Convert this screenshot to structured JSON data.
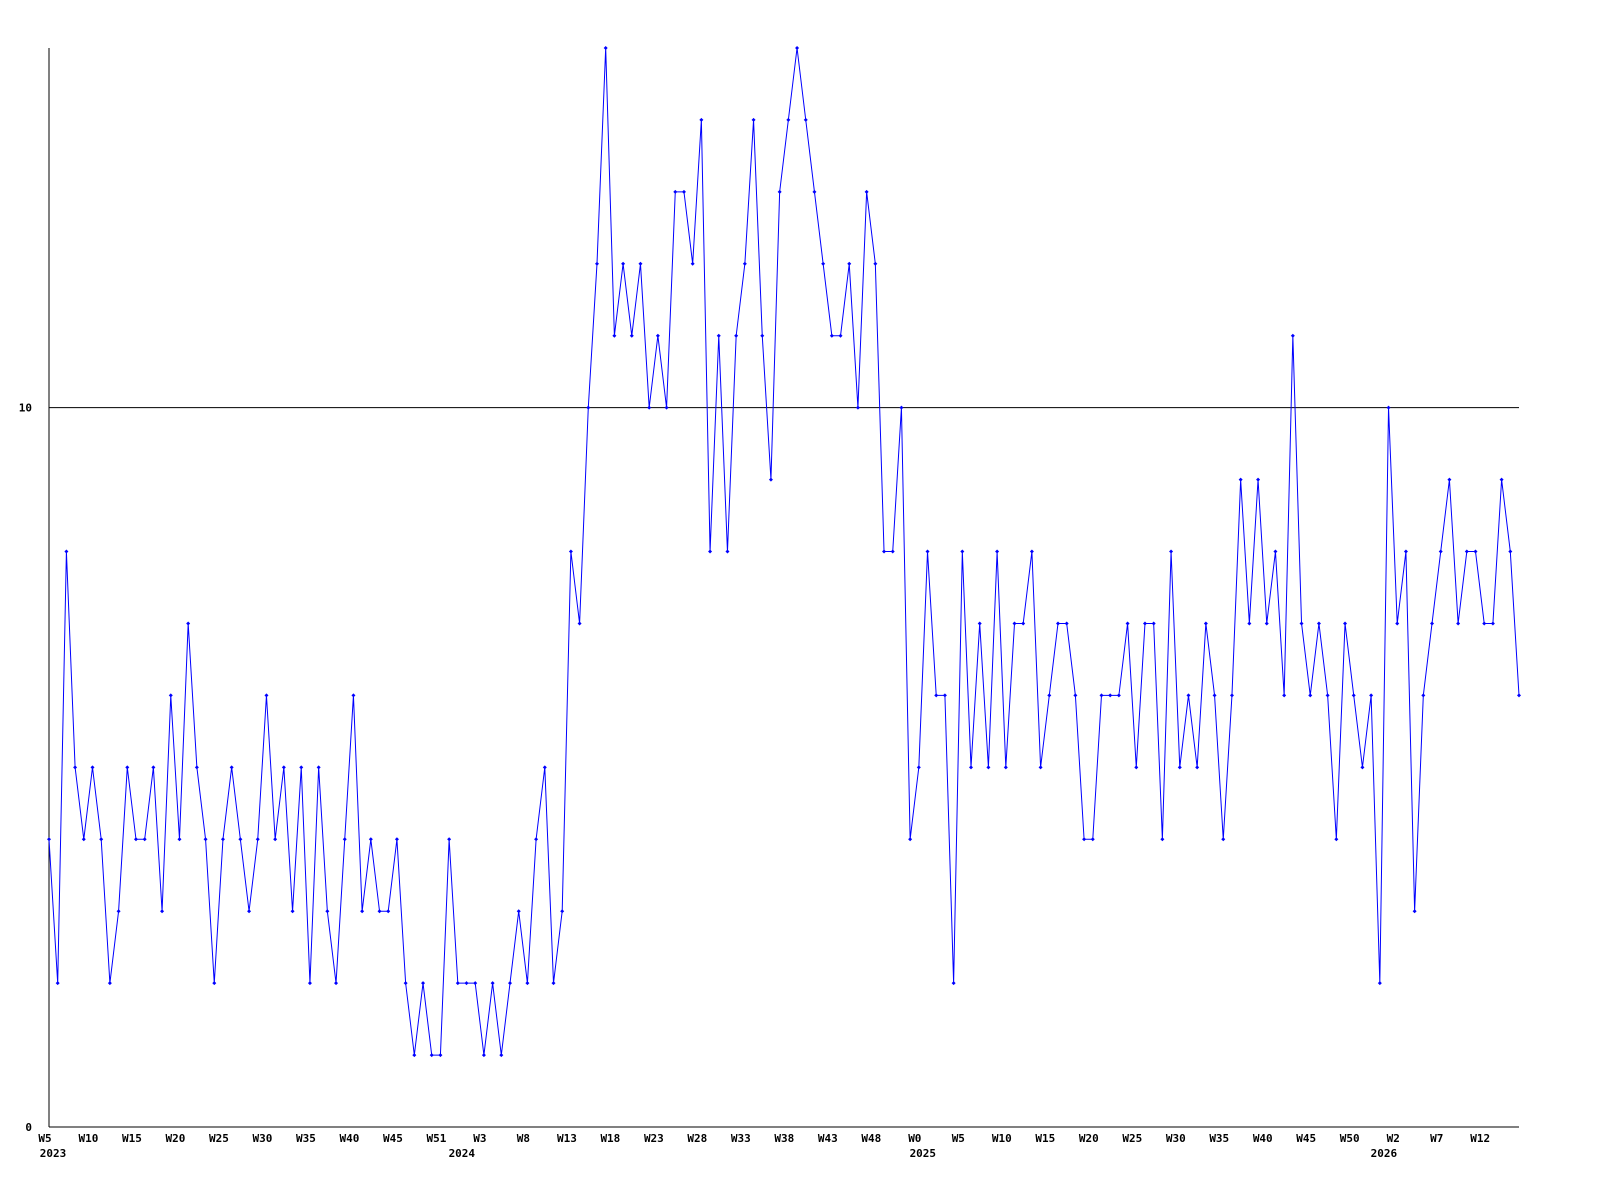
{
  "chart_data": {
    "type": "line",
    "categories": [
      "W5",
      null,
      null,
      null,
      null,
      "W10",
      null,
      null,
      null,
      null,
      "W15",
      null,
      null,
      null,
      null,
      "W20",
      null,
      null,
      null,
      null,
      "W25",
      null,
      null,
      null,
      null,
      "W30",
      null,
      null,
      null,
      null,
      "W35",
      null,
      null,
      null,
      null,
      "W40",
      null,
      null,
      null,
      null,
      "W45",
      null,
      null,
      null,
      null,
      "W51",
      null,
      null,
      null,
      null,
      "W3",
      null,
      null,
      null,
      null,
      "W8",
      null,
      null,
      null,
      null,
      "W13",
      null,
      null,
      null,
      null,
      "W18",
      null,
      null,
      null,
      null,
      "W23",
      null,
      null,
      null,
      null,
      "W28",
      null,
      null,
      null,
      null,
      "W33",
      null,
      null,
      null,
      null,
      "W38",
      null,
      null,
      null,
      null,
      "W43",
      null,
      null,
      null,
      null,
      "W48",
      null,
      null,
      null,
      null,
      "W0",
      null,
      null,
      null,
      null,
      "W5",
      null,
      null,
      null,
      null,
      "W10",
      null,
      null,
      null,
      null,
      "W15",
      null,
      null,
      null,
      null,
      "W20",
      null,
      null,
      null,
      null,
      "W25",
      null,
      null,
      null,
      null,
      "W30",
      null,
      null,
      null,
      null,
      "W35",
      null,
      null,
      null,
      null,
      "W40",
      null,
      null,
      null,
      null,
      "W45",
      null,
      null,
      null,
      null,
      "W50",
      null,
      null,
      null,
      null,
      "W2",
      null,
      null,
      null,
      null,
      "W7",
      null,
      null,
      null,
      null,
      "W12",
      null,
      null,
      null,
      null
    ],
    "year_labels": {
      "0": "2023",
      "47": "2024",
      "100": "2025",
      "153": "2026"
    },
    "values": [
      4,
      2,
      8,
      5,
      4,
      5,
      4,
      2,
      3,
      5,
      4,
      4,
      5,
      3,
      6,
      4,
      7,
      5,
      4,
      2,
      4,
      5,
      4,
      3,
      4,
      6,
      4,
      5,
      3,
      5,
      2,
      5,
      3,
      2,
      4,
      6,
      3,
      4,
      3,
      3,
      4,
      2,
      1,
      2,
      1,
      1,
      4,
      2,
      2,
      2,
      1,
      2,
      1,
      2,
      3,
      2,
      4,
      5,
      2,
      3,
      8,
      7,
      10,
      12,
      15,
      11,
      12,
      11,
      12,
      10,
      11,
      10,
      13,
      13,
      12,
      14,
      8,
      11,
      8,
      11,
      12,
      14,
      11,
      9,
      13,
      14,
      15,
      14,
      13,
      12,
      11,
      11,
      12,
      10,
      13,
      12,
      8,
      8,
      10,
      4,
      5,
      8,
      6,
      6,
      2,
      8,
      5,
      7,
      5,
      8,
      5,
      7,
      7,
      8,
      5,
      6,
      7,
      7,
      6,
      4,
      4,
      6,
      6,
      6,
      7,
      5,
      7,
      7,
      4,
      8,
      5,
      6,
      5,
      7,
      6,
      4,
      6,
      9,
      7,
      9,
      7,
      8,
      6,
      11,
      7,
      6,
      7,
      6,
      4,
      7,
      6,
      5,
      6,
      2,
      10,
      7,
      8,
      3,
      6,
      7,
      8,
      9,
      7,
      8,
      8,
      7,
      7,
      9,
      8,
      6
    ],
    "color": "#0000ff",
    "ylim": [
      0,
      15
    ],
    "yticks": [
      0,
      10
    ],
    "grid": true
  }
}
